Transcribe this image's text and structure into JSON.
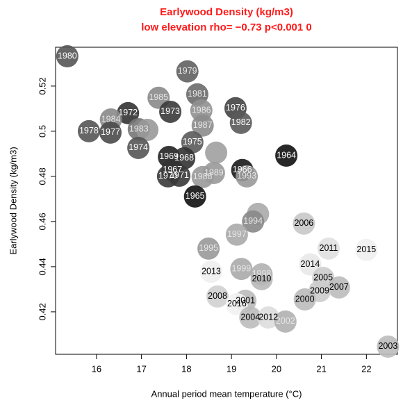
{
  "chart_data": {
    "type": "scatter",
    "title": "Earlywood Density (kg/m3)",
    "subtitle": "low elevation rho= −0.73 p<0.001 0",
    "x_label": "Annual period mean temperature (°C)",
    "y_label": "Earlywood Density (kg/m3)",
    "xlim": [
      15.09,
      22.69
    ],
    "ylim": [
      0.4012,
      0.5372
    ],
    "xticks": [
      16,
      17,
      18,
      19,
      20,
      21,
      22
    ],
    "yticks": [
      0.42,
      0.44,
      0.46,
      0.48,
      0.5,
      0.52
    ],
    "labels": [
      "1980",
      "1979",
      "1985",
      "1981",
      "1976",
      "1986",
      "1973",
      "1972",
      "1984",
      "1982",
      "1987",
      "1983",
      null,
      "1978",
      "1977",
      "1975",
      "1974",
      "1964",
      null,
      "1969",
      "1968",
      "1967",
      "1966",
      "1989",
      "1970",
      "1971",
      "1988",
      "1993",
      "1965",
      null,
      "1994",
      "2006",
      "1997",
      "1995",
      "2011",
      "2015",
      "2014",
      "2013",
      "1999",
      "1998",
      "2010",
      "2005",
      "2007",
      "2009",
      "2008",
      "2000",
      "2001",
      "2016",
      "2004",
      "2012",
      "2002",
      "2003"
    ],
    "x": [
      15.35,
      18.02,
      17.38,
      18.24,
      19.09,
      18.33,
      17.64,
      16.7,
      16.32,
      19.21,
      18.36,
      16.94,
      17.13,
      15.83,
      16.31,
      18.13,
      16.93,
      20.22,
      18.66,
      17.61,
      17.95,
      17.69,
      19.24,
      18.61,
      17.59,
      17.84,
      18.36,
      19.34,
      18.19,
      19.59,
      19.48,
      20.61,
      19.12,
      18.49,
      21.16,
      22.0,
      20.75,
      18.55,
      19.22,
      19.67,
      19.67,
      21.04,
      21.39,
      20.96,
      18.69,
      20.63,
      19.31,
      19.12,
      19.42,
      19.82,
      20.2,
      22.48
    ],
    "y": [
      0.5332,
      0.5265,
      0.5148,
      0.5163,
      0.5102,
      0.5092,
      0.5086,
      0.508,
      0.5052,
      0.5037,
      0.5025,
      0.5009,
      0.5006,
      0.5,
      0.4994,
      0.4951,
      0.4926,
      0.4892,
      0.4905,
      0.4886,
      0.488,
      0.4828,
      0.4828,
      0.4815,
      0.48,
      0.4803,
      0.4797,
      0.48,
      0.4711,
      0.4634,
      0.46,
      0.4591,
      0.4542,
      0.448,
      0.448,
      0.4474,
      0.441,
      0.4378,
      0.439,
      0.4366,
      0.4345,
      0.435,
      0.4308,
      0.4292,
      0.4268,
      0.4255,
      0.4249,
      0.4234,
      0.4175,
      0.4175,
      0.4157,
      0.4046
    ],
    "colors": [
      "#555555",
      "#606060",
      "#8a8a8a",
      "#6a6a6a",
      "#444444",
      "#909090",
      "#3a3a3a",
      "#333333",
      "#888888",
      "#5a5a5a",
      "#8c8c8c",
      "#777777",
      "#999999",
      "#555555",
      "#4a4a4a",
      "#5a5a5a",
      "#555555",
      "#111111",
      "#a0a0a0",
      "#222222",
      "#333333",
      "#333333",
      "#1a1a1a",
      "#999999",
      "#3a3a3a",
      "#3a3a3a",
      "#999999",
      "#999999",
      "#111111",
      "#aaaaaa",
      "#888888",
      "#c8c8c8",
      "#aaaaaa",
      "#999999",
      "#e0e0e0",
      "#f0f0f0",
      "#e8e8e8",
      "#eeeeee",
      "#aaaaaa",
      "#b0b0b0",
      "#b8b8b8",
      "#cccccc",
      "#bbbbbb",
      "#cccccc",
      "#d0d0d0",
      "#bbbbbb",
      "#bbbbbb",
      "#f2f2f2",
      "#bbbbbb",
      "#dddddd",
      "#b0b0b0",
      "#bbbbbb"
    ]
  }
}
